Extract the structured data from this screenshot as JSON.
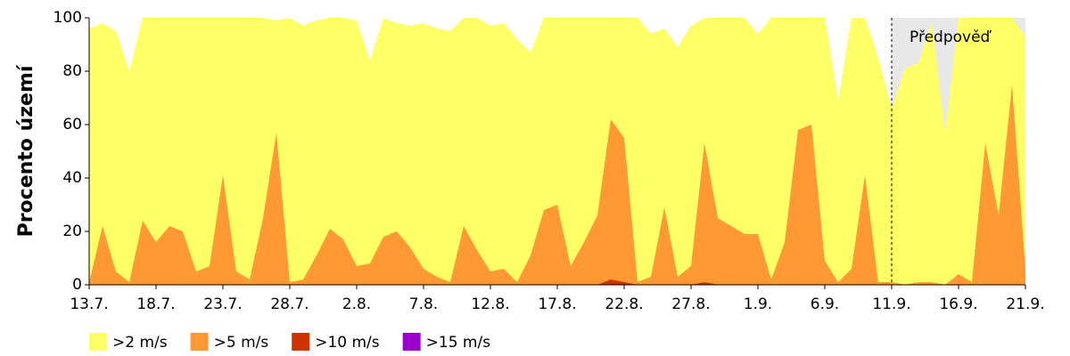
{
  "chart_data": {
    "type": "area",
    "y_label": "Procento území",
    "categories": [
      "13.7.",
      null,
      null,
      null,
      null,
      "18.7.",
      null,
      null,
      null,
      null,
      "23.7.",
      null,
      null,
      null,
      null,
      "28.7.",
      null,
      null,
      null,
      null,
      "2.8.",
      null,
      null,
      null,
      null,
      "7.8.",
      null,
      null,
      null,
      null,
      "12.8.",
      null,
      null,
      null,
      null,
      "17.8.",
      null,
      null,
      null,
      null,
      "22.8.",
      null,
      null,
      null,
      null,
      "27.8.",
      null,
      null,
      null,
      null,
      "1.9.",
      null,
      null,
      null,
      null,
      "6.9.",
      null,
      null,
      null,
      null,
      "11.9.",
      null,
      null,
      null,
      null,
      "16.9.",
      null,
      null,
      null,
      null,
      "21.9."
    ],
    "series": [
      {
        "name": ">2 m/s",
        "color": "#ffff66",
        "values": [
          96,
          98,
          95,
          80,
          100,
          100,
          100,
          100,
          100,
          100,
          100,
          100,
          100,
          100,
          99,
          100,
          97,
          99,
          100,
          100,
          99,
          84,
          100,
          98,
          97,
          98,
          96,
          95,
          100,
          100,
          97,
          98,
          92,
          87,
          100,
          100,
          100,
          100,
          100,
          100,
          100,
          100,
          94,
          96,
          89,
          97,
          100,
          100,
          100,
          100,
          94,
          100,
          100,
          100,
          100,
          100,
          69,
          100,
          100,
          85,
          66,
          81,
          83,
          98,
          57,
          100,
          100,
          100,
          100,
          100,
          93
        ]
      },
      {
        "name": ">5 m/s",
        "color": "#ff9933",
        "values": [
          1,
          22,
          5,
          1,
          24,
          16,
          22,
          20,
          5,
          7,
          41,
          5,
          2,
          25,
          57,
          1,
          2,
          11,
          21,
          17,
          7,
          8,
          18,
          20,
          14,
          6,
          3,
          1,
          22,
          13,
          5,
          6,
          1,
          11,
          28,
          30,
          7,
          16,
          26,
          62,
          55,
          1,
          3,
          29,
          3,
          7,
          53,
          25,
          22,
          19,
          19,
          2,
          16,
          58,
          60,
          9,
          1,
          6,
          41,
          1,
          1,
          0,
          1,
          1,
          0,
          4,
          1,
          53,
          26,
          75,
          6
        ]
      },
      {
        "name": ">10 m/s",
        "color": "#cc3300",
        "values": [
          0,
          0,
          0,
          0,
          0,
          0,
          0,
          0,
          0,
          0,
          0,
          0,
          0,
          0,
          0,
          0,
          0,
          0,
          0,
          0,
          0,
          0,
          0,
          0,
          0,
          0,
          0,
          0,
          0,
          0,
          0,
          0,
          0,
          0,
          0,
          0,
          0,
          0,
          0,
          2,
          1,
          0,
          0,
          0,
          0,
          0,
          1,
          0,
          0,
          0,
          0,
          0,
          0,
          0,
          0,
          0,
          0,
          0,
          0,
          0,
          0,
          0,
          0,
          0,
          0,
          0,
          0,
          0,
          0,
          0,
          0
        ]
      },
      {
        "name": ">15 m/s",
        "color": "#9900cc",
        "values": [
          0,
          0,
          0,
          0,
          0,
          0,
          0,
          0,
          0,
          0,
          0,
          0,
          0,
          0,
          0,
          0,
          0,
          0,
          0,
          0,
          0,
          0,
          0,
          0,
          0,
          0,
          0,
          0,
          0,
          0,
          0,
          0,
          0,
          0,
          0,
          0,
          0,
          0,
          0,
          0,
          0,
          0,
          0,
          0,
          0,
          0,
          0,
          0,
          0,
          0,
          0,
          0,
          0,
          0,
          0,
          0,
          0,
          0,
          0,
          0,
          0,
          0,
          0,
          0,
          0,
          0,
          0,
          0,
          0,
          0,
          0
        ]
      }
    ],
    "annotation": {
      "text": "Předpověď",
      "x": "11.9.",
      "color": "#e8e8e8"
    },
    "ylim": [
      0,
      100
    ],
    "yticks": [
      0,
      20,
      40,
      60,
      80,
      100
    ]
  }
}
